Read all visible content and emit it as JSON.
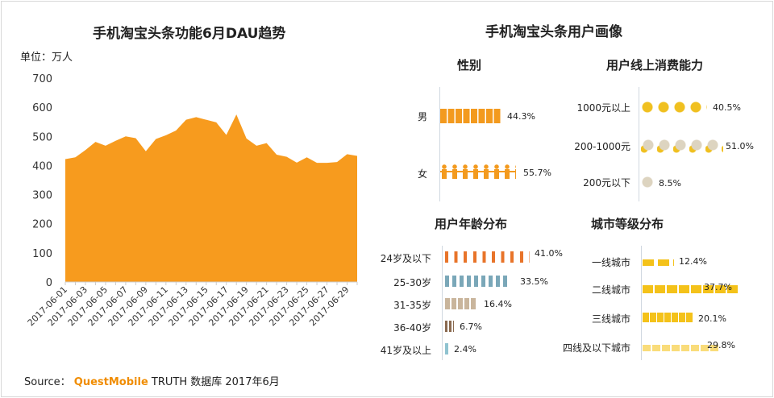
{
  "left": {
    "title": "手机淘宝头条功能6月DAU趋势",
    "unit": "单位：万人"
  },
  "source": {
    "prefix": "Source：",
    "brand": "QuestMobile",
    "rest": "TRUTH 数据库 2017年6月"
  },
  "right": {
    "title": "手机淘宝头条用户画像",
    "gender": {
      "title": "性别",
      "items": [
        {
          "label": "男",
          "value": "44.3%",
          "pct": 44.3
        },
        {
          "label": "女",
          "value": "55.7%",
          "pct": 55.7
        }
      ]
    },
    "spending": {
      "title": "用户线上消费能力",
      "items": [
        {
          "label": "1000元以上",
          "value": "40.5%",
          "pct": 40.5
        },
        {
          "label": "200-1000元",
          "value": "51.0%",
          "pct": 51.0
        },
        {
          "label": "200元以下",
          "value": "8.5%",
          "pct": 8.5
        }
      ]
    },
    "age": {
      "title": "用户年龄分布",
      "items": [
        {
          "label": "24岁及以下",
          "value": "41.0%",
          "pct": 41.0
        },
        {
          "label": "25-30岁",
          "value": "33.5%",
          "pct": 33.5
        },
        {
          "label": "31-35岁",
          "value": "16.4%",
          "pct": 16.4
        },
        {
          "label": "36-40岁",
          "value": "6.7%",
          "pct": 6.7
        },
        {
          "label": "41岁及以上",
          "value": "2.4%",
          "pct": 2.4
        }
      ]
    },
    "city": {
      "title": "城市等级分布",
      "items": [
        {
          "label": "一线城市",
          "value": "12.4%",
          "pct": 12.4
        },
        {
          "label": "二线城市",
          "value": "37.7%",
          "pct": 37.7
        },
        {
          "label": "三线城市",
          "value": "20.1%",
          "pct": 20.1
        },
        {
          "label": "四线及以下城市",
          "value": "29.8%",
          "pct": 29.8
        }
      ]
    }
  },
  "chart_data": {
    "type": "area",
    "title": "手机淘宝头条功能6月DAU趋势",
    "ylabel": "单位：万人",
    "ylim": [
      0,
      700
    ],
    "yticks": [
      "0",
      "100",
      "200",
      "300",
      "400",
      "500",
      "600",
      "700"
    ],
    "color": "#f79b1e",
    "x": [
      "2017-06-01",
      "2017-06-02",
      "2017-06-03",
      "2017-06-04",
      "2017-06-05",
      "2017-06-06",
      "2017-06-07",
      "2017-06-08",
      "2017-06-09",
      "2017-06-10",
      "2017-06-11",
      "2017-06-12",
      "2017-06-13",
      "2017-06-14",
      "2017-06-15",
      "2017-06-16",
      "2017-06-17",
      "2017-06-18",
      "2017-06-19",
      "2017-06-20",
      "2017-06-21",
      "2017-06-22",
      "2017-06-23",
      "2017-06-24",
      "2017-06-25",
      "2017-06-26",
      "2017-06-27",
      "2017-06-28",
      "2017-06-29",
      "2017-06-30"
    ],
    "xticklabels": [
      "2017-06-01",
      "2017-06-03",
      "2017-06-05",
      "2017-06-07",
      "2017-06-09",
      "2017-06-11",
      "2017-06-13",
      "2017-06-15",
      "2017-06-17",
      "2017-06-19",
      "2017-06-21",
      "2017-06-23",
      "2017-06-25",
      "2017-06-27",
      "2017-06-29"
    ],
    "values": [
      422,
      428,
      453,
      481,
      468,
      485,
      500,
      494,
      449,
      491,
      504,
      520,
      557,
      566,
      557,
      548,
      505,
      575,
      493,
      468,
      477,
      437,
      430,
      410,
      428,
      409,
      409,
      412,
      439,
      433
    ]
  }
}
